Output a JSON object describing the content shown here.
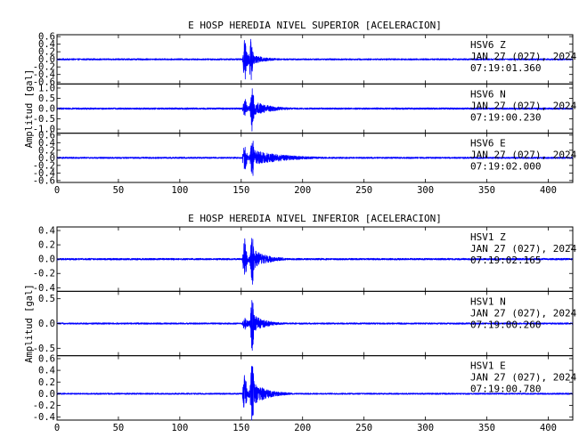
{
  "chart_data": [
    {
      "type": "line",
      "title": "E HOSP HEREDIA NIVEL SUPERIOR [ACELERACION]",
      "ylabel": "Amplitud [gal]",
      "xlabel": "",
      "xlim": [
        0,
        420
      ],
      "x_ticks": [
        0,
        50,
        100,
        150,
        200,
        250,
        300,
        350,
        400
      ],
      "line_color": "#0000ff",
      "channels": [
        {
          "station": "HSV6",
          "component": "Z",
          "date": "JAN 27 (027), 2024",
          "time": "07:19:01.360",
          "ylim": [
            -0.65,
            0.65
          ],
          "y_ticks": [
            "0.6",
            "0.4",
            "0.2",
            "0.0",
            "-0.2",
            "-0.4",
            "-0.6"
          ],
          "y_tick_values": [
            0.6,
            0.4,
            0.2,
            0.0,
            -0.2,
            -0.4,
            -0.6
          ],
          "noise_amplitude": 0.02,
          "event_onset": 151,
          "peak_time": 153,
          "peak_amplitude": 0.6,
          "secondary_time": 158,
          "secondary_amplitude": 0.55,
          "decay_seconds": 12
        },
        {
          "station": "HSV6",
          "component": "N",
          "date": "JAN 27 (027), 2024",
          "time": "07:19:00.230",
          "ylim": [
            -1.2,
            1.2
          ],
          "y_ticks": [
            "1.0",
            "0.5",
            "0.0",
            "-0.5",
            "-1.0"
          ],
          "y_tick_values": [
            1.0,
            0.5,
            0.0,
            -0.5,
            -1.0
          ],
          "noise_amplitude": 0.04,
          "event_onset": 151,
          "peak_time": 159,
          "peak_amplitude": 1.15,
          "secondary_time": 153,
          "secondary_amplitude": 0.5,
          "decay_seconds": 14
        },
        {
          "station": "HSV6",
          "component": "E",
          "date": "JAN 27 (027), 2024",
          "time": "07:19:02.000",
          "ylim": [
            -0.65,
            0.65
          ],
          "y_ticks": [
            "0.6",
            "0.4",
            "0.2",
            "0.0",
            "-0.2",
            "-0.4",
            "-0.6"
          ],
          "y_tick_values": [
            0.6,
            0.4,
            0.2,
            0.0,
            -0.2,
            -0.4,
            -0.6
          ],
          "noise_amplitude": 0.02,
          "event_onset": 151,
          "peak_time": 159,
          "peak_amplitude": 0.6,
          "secondary_time": 153,
          "secondary_amplitude": 0.4,
          "decay_seconds": 25
        }
      ]
    },
    {
      "type": "line",
      "title": "E HOSP HEREDIA NIVEL INFERIOR [ACELERACION]",
      "ylabel": "Amplitud [gal]",
      "xlabel": "",
      "xlim": [
        0,
        420
      ],
      "x_ticks": [
        0,
        50,
        100,
        150,
        200,
        250,
        300,
        350,
        400
      ],
      "line_color": "#0000ff",
      "channels": [
        {
          "station": "HSV1",
          "component": "Z",
          "date": "JAN 27 (027), 2024",
          "time": "07:19:02.165",
          "ylim": [
            -0.45,
            0.45
          ],
          "y_ticks": [
            "0.4",
            "0.2",
            "0.0",
            "-0.2",
            "-0.4"
          ],
          "y_tick_values": [
            0.4,
            0.2,
            0.0,
            -0.2,
            -0.4
          ],
          "noise_amplitude": 0.012,
          "event_onset": 151,
          "peak_time": 159,
          "peak_amplitude": 0.42,
          "secondary_time": 153,
          "secondary_amplitude": 0.3,
          "decay_seconds": 12
        },
        {
          "station": "HSV1",
          "component": "N",
          "date": "JAN 27 (027), 2024",
          "time": "07:19:00.260",
          "ylim": [
            -0.65,
            0.65
          ],
          "y_ticks": [
            "0.5",
            "0.0",
            "-0.5"
          ],
          "y_tick_values": [
            0.5,
            0.0,
            -0.5
          ],
          "noise_amplitude": 0.015,
          "event_onset": 151,
          "peak_time": 159,
          "peak_amplitude": 0.6,
          "secondary_time": 153,
          "secondary_amplitude": 0.15,
          "decay_seconds": 10
        },
        {
          "station": "HSV1",
          "component": "E",
          "date": "JAN 27 (027), 2024",
          "time": "07:19:00.780",
          "ylim": [
            -0.45,
            0.65
          ],
          "y_ticks": [
            "0.6",
            "0.4",
            "0.2",
            "0.0",
            "-0.2",
            "-0.4"
          ],
          "y_tick_values": [
            0.6,
            0.4,
            0.2,
            0.0,
            -0.2,
            -0.4
          ],
          "noise_amplitude": 0.012,
          "event_onset": 151,
          "peak_time": 159,
          "peak_amplitude": 0.6,
          "secondary_time": 153,
          "secondary_amplitude": 0.35,
          "decay_seconds": 12
        }
      ]
    }
  ]
}
